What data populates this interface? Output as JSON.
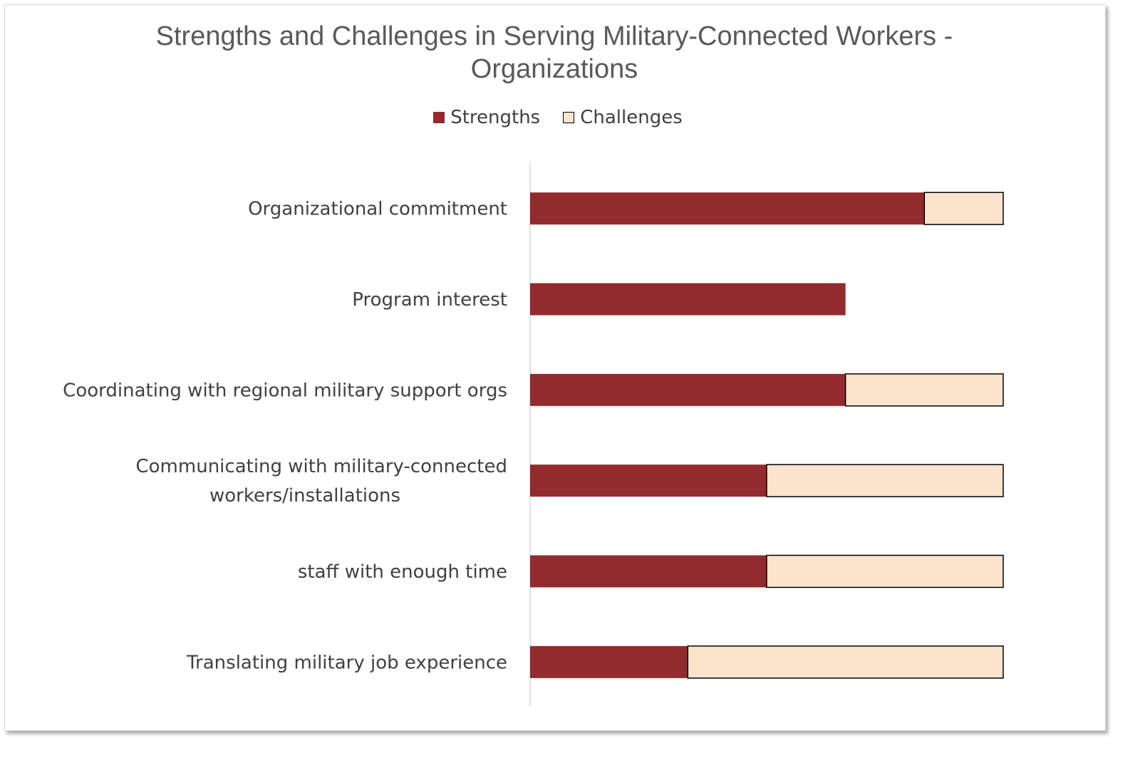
{
  "chart_data": {
    "type": "bar",
    "orientation": "horizontal",
    "stacked": true,
    "title": "Strengths and Challenges in Serving Military-Connected Workers - Organizations",
    "title_lines": [
      "Strengths and Challenges in Serving Military-Connected Workers -",
      "Organizations"
    ],
    "legend_position": "top",
    "categories": [
      [
        "Organizational commitment"
      ],
      [
        "Program interest"
      ],
      [
        "Coordinating with regional military support orgs"
      ],
      [
        "Communicating with military-connected",
        "workers/installations"
      ],
      [
        "staff with enough time"
      ],
      [
        "Translating military job experience"
      ]
    ],
    "series": [
      {
        "name": "Strengths",
        "color": "#922B2E",
        "values": [
          5,
          4,
          4,
          3,
          3,
          2
        ]
      },
      {
        "name": "Challenges",
        "color": "#FCE4CC",
        "values": [
          1,
          0,
          2,
          3,
          3,
          4
        ]
      }
    ],
    "xlim": [
      0,
      6
    ],
    "grid": false,
    "xaxis_visible": false
  }
}
